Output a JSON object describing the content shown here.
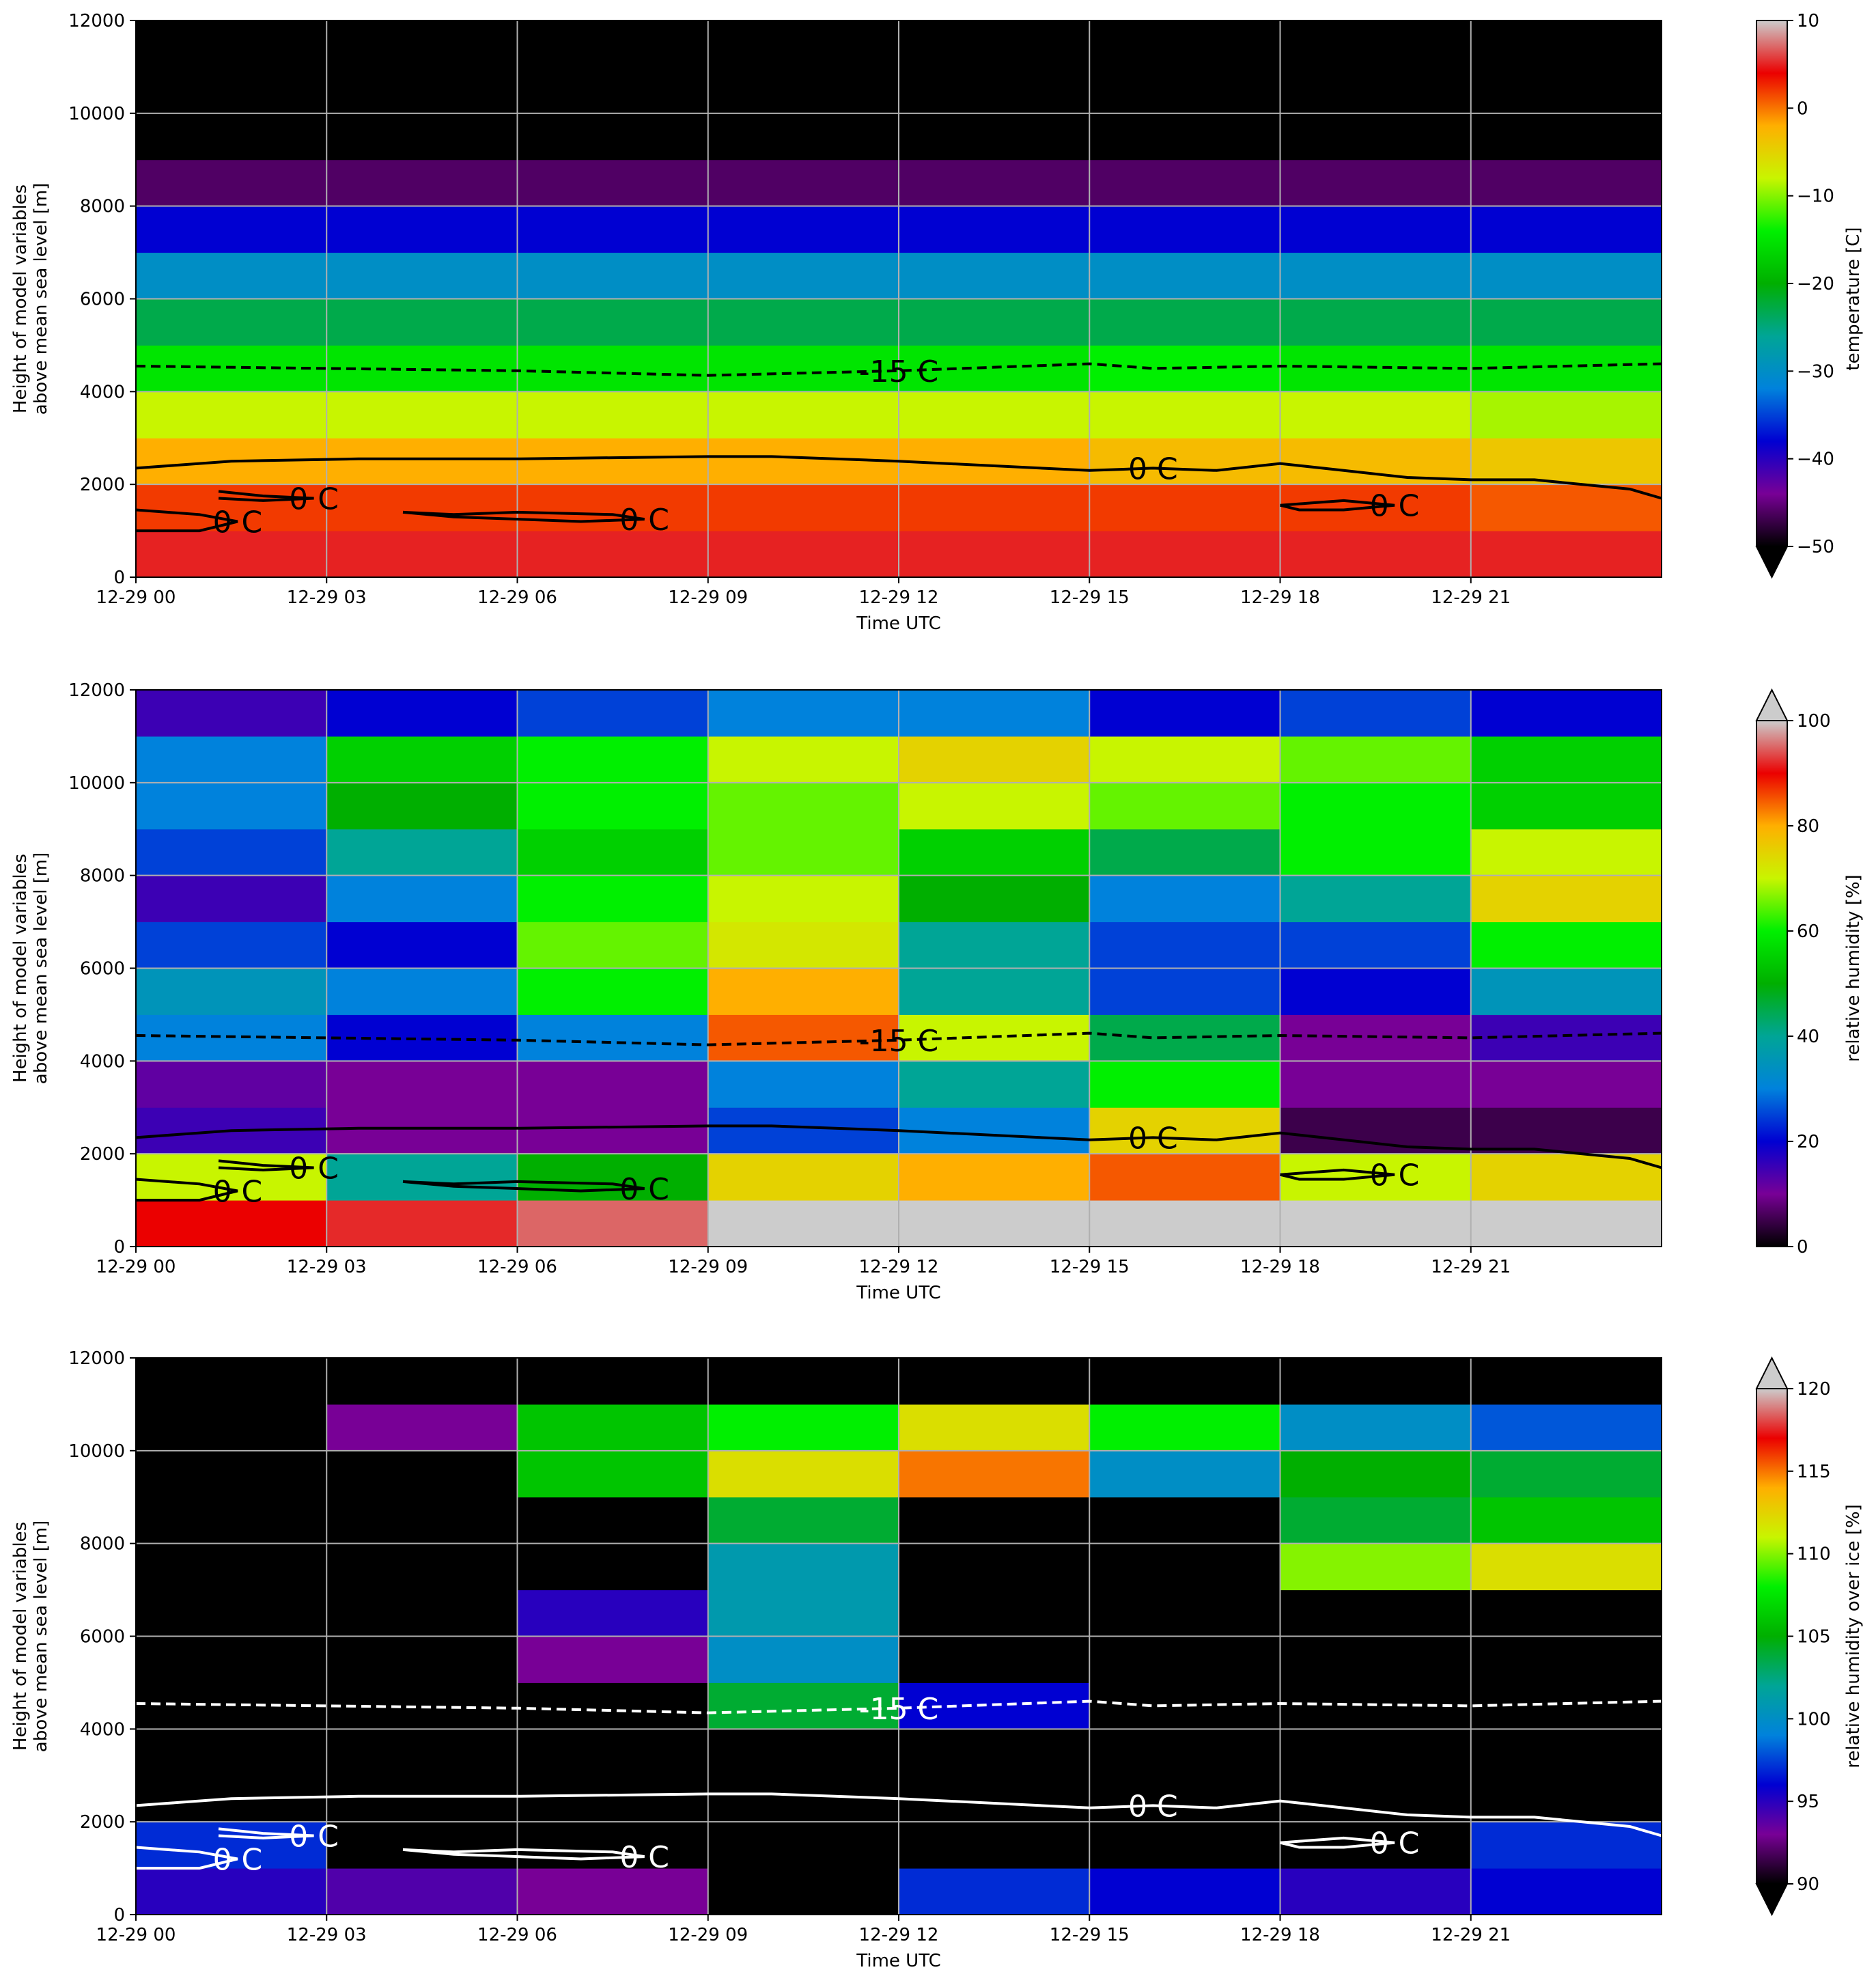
{
  "chart_data": [
    {
      "type": "heatmap",
      "xlabel": "Time UTC",
      "ylabel": [
        "Height of model variables",
        "above mean sea level [m]"
      ],
      "colorbar_label": "temperature [C]",
      "extend": "min",
      "contour_color": "#000000",
      "xlim": [
        0,
        24
      ],
      "ylim": [
        0,
        12000
      ],
      "xticks": [
        {
          "value": 0,
          "label": "12-29 00"
        },
        {
          "value": 3,
          "label": "12-29 03"
        },
        {
          "value": 6,
          "label": "12-29 06"
        },
        {
          "value": 9,
          "label": "12-29 09"
        },
        {
          "value": 12,
          "label": "12-29 12"
        },
        {
          "value": 15,
          "label": "12-29 15"
        },
        {
          "value": 18,
          "label": "12-29 18"
        },
        {
          "value": 21,
          "label": "12-29 21"
        }
      ],
      "yticks": [
        0,
        2000,
        4000,
        6000,
        8000,
        10000,
        12000
      ],
      "zlim": [
        -50,
        10
      ],
      "zticks": [
        {
          "value": -50,
          "label": "−50"
        },
        {
          "value": -40,
          "label": "−40"
        },
        {
          "value": -30,
          "label": "−30"
        },
        {
          "value": -20,
          "label": "−20"
        },
        {
          "value": -10,
          "label": "−10"
        },
        0,
        10
      ],
      "x_edges": [
        0,
        3,
        6,
        9,
        12,
        15,
        18,
        21,
        24
      ],
      "y_edges": [
        0,
        1000,
        2000,
        3000,
        4000,
        5000,
        6000,
        7000,
        8000,
        9000,
        10000,
        11000,
        12000
      ],
      "z": [
        [
          5,
          5,
          5,
          5,
          5,
          5,
          5,
          5
        ],
        [
          2,
          2,
          2,
          2,
          2,
          2,
          2,
          1
        ],
        [
          -2,
          -2,
          -2,
          -2,
          -2,
          -3,
          -3,
          -4
        ],
        [
          -8,
          -8,
          -8,
          -8,
          -8,
          -8,
          -8,
          -9
        ],
        [
          -15,
          -15,
          -15,
          -15,
          -15,
          -14,
          -15,
          -15
        ],
        [
          -23,
          -23,
          -23,
          -23,
          -23,
          -23,
          -23,
          -23
        ],
        [
          -30,
          -30,
          -30,
          -30,
          -30,
          -30,
          -30,
          -30
        ],
        [
          -38,
          -38,
          -38,
          -38,
          -38,
          -38,
          -38,
          -38
        ],
        [
          -46,
          -46,
          -46,
          -46,
          -46,
          -46,
          -46,
          -46
        ],
        [
          -55,
          -55,
          -55,
          -55,
          -55,
          -55,
          -55,
          -55
        ],
        [
          -60,
          -60,
          -60,
          -60,
          -60,
          -60,
          -60,
          -60
        ],
        [
          -60,
          -60,
          -60,
          -60,
          -60,
          -60,
          -60,
          -60
        ]
      ],
      "grid": true,
      "contours": [
        {
          "label": "-15 C",
          "style": "dashed",
          "x": [
            0,
            3,
            6,
            7.5,
            9,
            12,
            15,
            16,
            18,
            21,
            24
          ],
          "y": [
            4550,
            4500,
            4450,
            4400,
            4350,
            4450,
            4600,
            4500,
            4550,
            4500,
            4600
          ]
        },
        {
          "label": "0 C",
          "style": "solid",
          "x": [
            0,
            1.5,
            3.5,
            6,
            9,
            10,
            12,
            15,
            16,
            17,
            18,
            19,
            20,
            21,
            22,
            23.5,
            24
          ],
          "y": [
            2350,
            2500,
            2550,
            2550,
            2600,
            2600,
            2500,
            2300,
            2350,
            2300,
            2450,
            2300,
            2150,
            2100,
            2100,
            1900,
            1700
          ]
        },
        {
          "label": "0 C",
          "style": "solid",
          "x": [
            1.3,
            2,
            2.8,
            2,
            1.3
          ],
          "y": [
            1850,
            1750,
            1700,
            1650,
            1700
          ]
        },
        {
          "label": "0 C",
          "style": "solid",
          "x": [
            0,
            1,
            1.6,
            1,
            0
          ],
          "y": [
            1450,
            1350,
            1200,
            1000,
            1000
          ]
        },
        {
          "label": "0 C",
          "style": "solid",
          "x": [
            4.2,
            5,
            6,
            7.5,
            8,
            7,
            5,
            4.2
          ],
          "y": [
            1400,
            1350,
            1400,
            1350,
            1250,
            1200,
            1300,
            1400
          ]
        },
        {
          "label": "0 C",
          "style": "solid",
          "x": [
            18,
            18.5,
            19,
            19.8,
            19,
            18.3,
            18
          ],
          "y": [
            1550,
            1600,
            1650,
            1550,
            1450,
            1450,
            1550
          ]
        }
      ]
    },
    {
      "type": "heatmap",
      "xlabel": "Time UTC",
      "ylabel": [
        "Height of model variables",
        "above mean sea level [m]"
      ],
      "colorbar_label": "relative humidity [%]",
      "extend": "max",
      "contour_color": "#000000",
      "xlim": [
        0,
        24
      ],
      "ylim": [
        0,
        12000
      ],
      "xticks": [
        {
          "value": 0,
          "label": "12-29 00"
        },
        {
          "value": 3,
          "label": "12-29 03"
        },
        {
          "value": 6,
          "label": "12-29 06"
        },
        {
          "value": 9,
          "label": "12-29 09"
        },
        {
          "value": 12,
          "label": "12-29 12"
        },
        {
          "value": 15,
          "label": "12-29 15"
        },
        {
          "value": 18,
          "label": "12-29 18"
        },
        {
          "value": 21,
          "label": "12-29 21"
        }
      ],
      "yticks": [
        0,
        2000,
        4000,
        6000,
        8000,
        10000,
        12000
      ],
      "zlim": [
        0,
        100
      ],
      "zticks": [
        0,
        20,
        40,
        60,
        80,
        100
      ],
      "x_edges": [
        0,
        3,
        6,
        9,
        12,
        15,
        18,
        21,
        24
      ],
      "y_edges": [
        0,
        1000,
        2000,
        3000,
        4000,
        5000,
        6000,
        7000,
        8000,
        9000,
        10000,
        11000,
        12000
      ],
      "z": [
        [
          90,
          92,
          95,
          101,
          101,
          101,
          101,
          101
        ],
        [
          70,
          40,
          50,
          75,
          80,
          85,
          70,
          75
        ],
        [
          15,
          10,
          10,
          25,
          30,
          75,
          5,
          5
        ],
        [
          12,
          10,
          10,
          30,
          40,
          60,
          10,
          10
        ],
        [
          30,
          20,
          30,
          85,
          70,
          45,
          10,
          15
        ],
        [
          35,
          30,
          60,
          80,
          40,
          25,
          20,
          35
        ],
        [
          25,
          20,
          65,
          72,
          40,
          25,
          25,
          60
        ],
        [
          15,
          30,
          60,
          70,
          50,
          30,
          40,
          75
        ],
        [
          25,
          40,
          55,
          65,
          55,
          45,
          60,
          70
        ],
        [
          30,
          50,
          60,
          65,
          70,
          65,
          60,
          55
        ],
        [
          30,
          55,
          60,
          70,
          75,
          70,
          65,
          55
        ],
        [
          15,
          20,
          25,
          30,
          30,
          20,
          25,
          20
        ]
      ],
      "grid": true,
      "contours": [
        {
          "label": "-15 C",
          "style": "dashed",
          "x": [
            0,
            3,
            6,
            7.5,
            9,
            12,
            15,
            16,
            18,
            21,
            24
          ],
          "y": [
            4550,
            4500,
            4450,
            4400,
            4350,
            4450,
            4600,
            4500,
            4550,
            4500,
            4600
          ]
        },
        {
          "label": "0 C",
          "style": "solid",
          "x": [
            0,
            1.5,
            3.5,
            6,
            9,
            10,
            12,
            15,
            16,
            17,
            18,
            19,
            20,
            21,
            22,
            23.5,
            24
          ],
          "y": [
            2350,
            2500,
            2550,
            2550,
            2600,
            2600,
            2500,
            2300,
            2350,
            2300,
            2450,
            2300,
            2150,
            2100,
            2100,
            1900,
            1700
          ]
        },
        {
          "label": "0 C",
          "style": "solid",
          "x": [
            1.3,
            2,
            2.8,
            2,
            1.3
          ],
          "y": [
            1850,
            1750,
            1700,
            1650,
            1700
          ]
        },
        {
          "label": "0 C",
          "style": "solid",
          "x": [
            0,
            1,
            1.6,
            1,
            0
          ],
          "y": [
            1450,
            1350,
            1200,
            1000,
            1000
          ]
        },
        {
          "label": "0 C",
          "style": "solid",
          "x": [
            4.2,
            5,
            6,
            7.5,
            8,
            7,
            5,
            4.2
          ],
          "y": [
            1400,
            1350,
            1400,
            1350,
            1250,
            1200,
            1300,
            1400
          ]
        },
        {
          "label": "0 C",
          "style": "solid",
          "x": [
            18,
            18.5,
            19,
            19.8,
            19,
            18.3,
            18
          ],
          "y": [
            1550,
            1600,
            1650,
            1550,
            1450,
            1450,
            1550
          ]
        }
      ]
    },
    {
      "type": "heatmap",
      "xlabel": "Time UTC",
      "ylabel": [
        "Height of model variables",
        "above mean sea level [m]"
      ],
      "colorbar_label": "relative humidity over ice [%]",
      "extend": "both",
      "contour_color": "#ffffff",
      "xlim": [
        0,
        24
      ],
      "ylim": [
        0,
        12000
      ],
      "xticks": [
        {
          "value": 0,
          "label": "12-29 00"
        },
        {
          "value": 3,
          "label": "12-29 03"
        },
        {
          "value": 6,
          "label": "12-29 06"
        },
        {
          "value": 9,
          "label": "12-29 09"
        },
        {
          "value": 12,
          "label": "12-29 12"
        },
        {
          "value": 15,
          "label": "12-29 15"
        },
        {
          "value": 18,
          "label": "12-29 18"
        },
        {
          "value": 21,
          "label": "12-29 21"
        }
      ],
      "yticks": [
        0,
        2000,
        4000,
        6000,
        8000,
        10000,
        12000
      ],
      "zlim": [
        90,
        120
      ],
      "zticks": [
        90,
        95,
        100,
        105,
        110,
        115,
        120
      ],
      "x_edges": [
        0,
        3,
        6,
        9,
        12,
        15,
        18,
        21,
        24
      ],
      "y_edges": [
        0,
        1000,
        2000,
        3000,
        4000,
        5000,
        6000,
        7000,
        8000,
        9000,
        10000,
        11000,
        12000
      ],
      "z": [
        [
          95,
          94,
          93,
          85,
          97,
          96,
          95,
          96
        ],
        [
          97,
          80,
          80,
          80,
          80,
          80,
          80,
          97
        ],
        [
          80,
          80,
          80,
          80,
          80,
          80,
          80,
          80
        ],
        [
          80,
          80,
          80,
          80,
          80,
          80,
          80,
          80
        ],
        [
          80,
          80,
          80,
          104,
          96,
          80,
          80,
          80
        ],
        [
          80,
          80,
          93,
          100,
          80,
          80,
          80,
          80
        ],
        [
          80,
          80,
          95,
          101,
          80,
          80,
          80,
          80
        ],
        [
          80,
          80,
          80,
          101,
          80,
          80,
          110,
          112
        ],
        [
          80,
          80,
          80,
          104,
          80,
          80,
          104,
          106
        ],
        [
          80,
          80,
          106,
          112,
          115,
          100,
          105,
          104
        ],
        [
          80,
          93,
          106,
          108,
          112,
          108,
          100,
          98
        ],
        [
          80,
          80,
          80,
          80,
          80,
          80,
          80,
          80
        ]
      ],
      "grid": true,
      "contours": [
        {
          "label": "-15 C",
          "style": "dashed",
          "x": [
            0,
            3,
            6,
            7.5,
            9,
            12,
            15,
            16,
            18,
            21,
            24
          ],
          "y": [
            4550,
            4500,
            4450,
            4400,
            4350,
            4450,
            4600,
            4500,
            4550,
            4500,
            4600
          ]
        },
        {
          "label": "0 C",
          "style": "solid",
          "x": [
            0,
            1.5,
            3.5,
            6,
            9,
            10,
            12,
            15,
            16,
            17,
            18,
            19,
            20,
            21,
            22,
            23.5,
            24
          ],
          "y": [
            2350,
            2500,
            2550,
            2550,
            2600,
            2600,
            2500,
            2300,
            2350,
            2300,
            2450,
            2300,
            2150,
            2100,
            2100,
            1900,
            1700
          ]
        },
        {
          "label": "0 C",
          "style": "solid",
          "x": [
            1.3,
            2,
            2.8,
            2,
            1.3
          ],
          "y": [
            1850,
            1750,
            1700,
            1650,
            1700
          ]
        },
        {
          "label": "0 C",
          "style": "solid",
          "x": [
            0,
            1,
            1.6,
            1,
            0
          ],
          "y": [
            1450,
            1350,
            1200,
            1000,
            1000
          ]
        },
        {
          "label": "0 C",
          "style": "solid",
          "x": [
            4.2,
            5,
            6,
            7.5,
            8,
            7,
            5,
            4.2
          ],
          "y": [
            1400,
            1350,
            1400,
            1350,
            1250,
            1200,
            1300,
            1400
          ]
        },
        {
          "label": "0 C",
          "style": "solid",
          "x": [
            18,
            18.5,
            19,
            19.8,
            19,
            18.3,
            18
          ],
          "y": [
            1550,
            1600,
            1650,
            1550,
            1450,
            1450,
            1550
          ]
        }
      ]
    }
  ]
}
